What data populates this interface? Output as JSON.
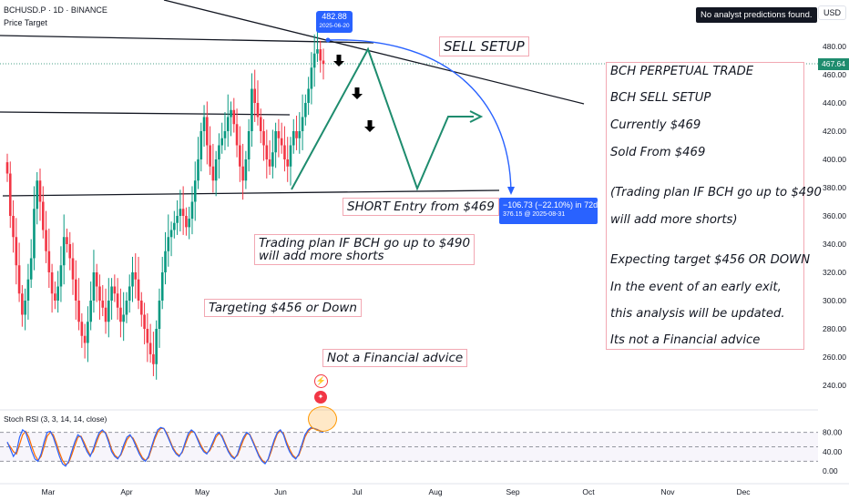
{
  "header": {
    "symbol_line": "BCHUSD.P · 1D · BINANCE",
    "subline": "Price Target",
    "no_predictions": "No analyst predictions found.",
    "currency": "USD"
  },
  "price_axis": {
    "current_price": "467.64",
    "ticks": [
      "480.00",
      "460.00",
      "440.00",
      "420.00",
      "400.00",
      "380.00",
      "360.00",
      "340.00",
      "320.00",
      "300.00",
      "280.00",
      "260.00",
      "240.00"
    ]
  },
  "rsi": {
    "label": "Stoch RSI (3, 3, 14, 14, close)",
    "ticks": [
      "80.00",
      "40.00",
      "0.00"
    ]
  },
  "time_axis": {
    "ticks": [
      "Mar",
      "Apr",
      "May",
      "Jun",
      "Jul",
      "Aug",
      "Sep",
      "Oct",
      "Nov",
      "Dec"
    ]
  },
  "callouts": {
    "high_value": "482.88",
    "high_date": "2025-06-20",
    "measure_line1": "−106.73 (−22.10%) in 72d",
    "measure_line2": "376.15 @ 2025-08-31"
  },
  "notes": {
    "sell_setup": "SELL SETUP",
    "short_entry": "SHORT Entry from $469",
    "trading_plan_1": "Trading plan IF BCH go up to $490",
    "trading_plan_2": "will add more shorts",
    "targeting": "Targeting $456 or Down",
    "not_advice": "Not a Financial advice"
  },
  "panel": {
    "lines": [
      "BCH PERPETUAL TRADE",
      "BCH SELL SETUP",
      "Currently $469",
      "Sold From $469",
      "(Trading plan IF BCH go up to $490",
      "will add more shorts)",
      "Expecting target $456 OR DOWN",
      "In the event of an early exit,",
      "this analysis will be updated.",
      "Its not a Financial advice"
    ]
  },
  "colors": {
    "up": "#089981",
    "down": "#f23645",
    "projection": "#1e8c6e",
    "arc": "#2962ff",
    "rsi_k": "#2962ff",
    "rsi_d": "#ff6d00",
    "price_tag": "#1e8c6e"
  },
  "chart_data": {
    "type": "candlestick",
    "symbol": "BCHUSD.P",
    "interval": "1D",
    "price_range": [
      230,
      500
    ],
    "months": [
      "Mar",
      "Apr",
      "May",
      "Jun",
      "Jul",
      "Aug",
      "Sep",
      "Oct",
      "Nov",
      "Dec"
    ],
    "closes": [
      390,
      360,
      345,
      325,
      305,
      290,
      300,
      315,
      330,
      365,
      385,
      370,
      350,
      335,
      320,
      305,
      300,
      310,
      325,
      345,
      340,
      330,
      315,
      300,
      285,
      275,
      270,
      285,
      300,
      320,
      310,
      300,
      295,
      285,
      300,
      310,
      305,
      295,
      285,
      290,
      300,
      310,
      320,
      315,
      300,
      290,
      280,
      270,
      262,
      255,
      280,
      300,
      320,
      335,
      345,
      350,
      355,
      360,
      365,
      360,
      352,
      358,
      370,
      385,
      400,
      420,
      430,
      410,
      395,
      385,
      400,
      410,
      415,
      420,
      430,
      435,
      425,
      410,
      395,
      385,
      400,
      420,
      450,
      440,
      430,
      420,
      410,
      400,
      395,
      405,
      420,
      415,
      410,
      400,
      395,
      410,
      420,
      415,
      420,
      430,
      440,
      450,
      465,
      475,
      478,
      470,
      467.64
    ],
    "current_price": 467.64,
    "high_marker": {
      "value": 482.88,
      "date": "2025-06-20"
    },
    "projection_path": [
      {
        "date": "2025-06-18",
        "price": 377
      },
      {
        "date": "2025-07-02",
        "price": 475
      },
      {
        "date": "2025-07-30",
        "price": 377
      },
      {
        "date": "2025-08-11",
        "price": 410
      },
      {
        "date": "2025-08-24",
        "price": 410
      }
    ],
    "measure": {
      "change": -106.73,
      "percent": -22.1,
      "days": 72,
      "target": 376.15,
      "target_date": "2025-08-31"
    },
    "stoch_rsi": {
      "k": [
        60,
        45,
        30,
        40,
        70,
        85,
        80,
        60,
        40,
        25,
        20,
        35,
        60,
        80,
        82,
        70,
        50,
        30,
        15,
        10,
        20,
        40,
        60,
        75,
        70,
        55,
        40,
        30,
        45,
        65,
        80,
        85,
        78,
        60,
        40,
        30,
        25,
        35,
        55,
        70,
        75,
        65,
        50,
        35,
        25,
        20,
        30,
        50,
        70,
        85,
        90,
        88,
        75,
        60,
        45,
        35,
        30,
        40,
        60,
        78,
        85,
        80,
        65,
        50,
        40,
        35,
        45,
        60,
        75,
        80,
        70,
        55,
        40,
        30,
        25,
        35,
        55,
        70,
        80,
        75,
        60,
        45,
        30,
        20,
        15,
        25,
        45,
        65,
        80,
        85,
        75,
        55,
        40,
        30,
        25,
        35,
        55,
        75,
        85,
        90,
        88,
        85,
        82,
        80
      ],
      "d": [
        58,
        50,
        40,
        35,
        55,
        75,
        82,
        70,
        50,
        33,
        22,
        30,
        50,
        72,
        80,
        75,
        58,
        38,
        22,
        13,
        17,
        33,
        52,
        70,
        72,
        60,
        45,
        33,
        40,
        58,
        75,
        83,
        80,
        65,
        45,
        33,
        27,
        33,
        48,
        65,
        73,
        68,
        55,
        40,
        28,
        22,
        27,
        45,
        65,
        80,
        88,
        88,
        78,
        63,
        48,
        38,
        32,
        38,
        55,
        72,
        82,
        80,
        68,
        55,
        43,
        37,
        42,
        55,
        70,
        78,
        73,
        58,
        43,
        33,
        27,
        32,
        48,
        65,
        77,
        76,
        63,
        48,
        33,
        23,
        17,
        23,
        40,
        60,
        77,
        83,
        78,
        60,
        45,
        33,
        27,
        32,
        50,
        70,
        82,
        88,
        88,
        86,
        83,
        81
      ],
      "levels": [
        80,
        50,
        20
      ],
      "range": [
        0,
        100
      ]
    }
  }
}
